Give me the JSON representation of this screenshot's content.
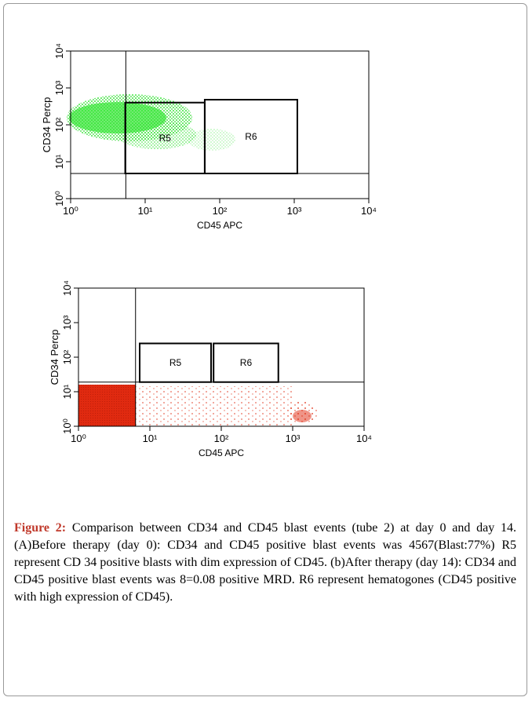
{
  "chart_data": [
    {
      "type": "scatter",
      "x_label": "CD45 APC",
      "y_label": "CD34 Percp",
      "log_scale": true,
      "xlim": [
        1,
        10000
      ],
      "ylim": [
        1,
        10000
      ],
      "xticks": [
        {
          "value": 1,
          "label": "10⁰"
        },
        {
          "value": 10,
          "label": "10¹"
        },
        {
          "value": 100,
          "label": "10²"
        },
        {
          "value": 1000,
          "label": "10³"
        },
        {
          "value": 10000,
          "label": "10⁴"
        }
      ],
      "yticks": [
        {
          "value": 1,
          "label": "10⁰"
        },
        {
          "value": 10,
          "label": "10¹"
        },
        {
          "value": 100,
          "label": "10²"
        },
        {
          "value": 1000,
          "label": "10³"
        },
        {
          "value": 10000,
          "label": "10⁴"
        }
      ],
      "x_threshold": 5.5,
      "y_threshold": 4.8,
      "gates": [
        {
          "name": "R5",
          "x": [
            5.4,
            63
          ],
          "y": [
            4.8,
            400
          ]
        },
        {
          "name": "R6",
          "x": [
            63,
            1100
          ],
          "y": [
            4.8,
            480
          ]
        }
      ],
      "color": "#33e633"
    },
    {
      "type": "scatter",
      "x_label": "CD45 APC",
      "y_label": "CD34 Percp",
      "log_scale": true,
      "xlim": [
        1,
        10000
      ],
      "ylim": [
        1,
        10000
      ],
      "xticks": [
        {
          "value": 1,
          "label": "10⁰"
        },
        {
          "value": 10,
          "label": "10¹"
        },
        {
          "value": 100,
          "label": "10²"
        },
        {
          "value": 1000,
          "label": "10³"
        },
        {
          "value": 10000,
          "label": "10⁴"
        }
      ],
      "yticks": [
        {
          "value": 1,
          "label": "10⁰"
        },
        {
          "value": 10,
          "label": "10¹"
        },
        {
          "value": 100,
          "label": "10²"
        },
        {
          "value": 1000,
          "label": "10³"
        },
        {
          "value": 10000,
          "label": "10⁴"
        }
      ],
      "x_threshold": 6.3,
      "y_threshold": 19,
      "gates": [
        {
          "name": "R5",
          "x": [
            7.2,
            72
          ],
          "y": [
            19,
            250
          ]
        },
        {
          "name": "R6",
          "x": [
            78,
            630
          ],
          "y": [
            19,
            250
          ]
        }
      ],
      "color": "#e02a10"
    }
  ],
  "caption": {
    "label": "Figure 2:",
    "text": "Comparison between CD34 and CD45 blast events (tube 2) at day 0 and day 14. (A)Before therapy (day 0): CD34 and CD45 positive blast events was 4567(Blast:77%) R5 represent CD 34 positive blasts with dim expression of CD45. (b)After therapy (day 14): CD34 and CD45 positive blast events was 8=0.08 positive MRD. R6 represent hematogones (CD45 positive with high expression of CD45)."
  }
}
